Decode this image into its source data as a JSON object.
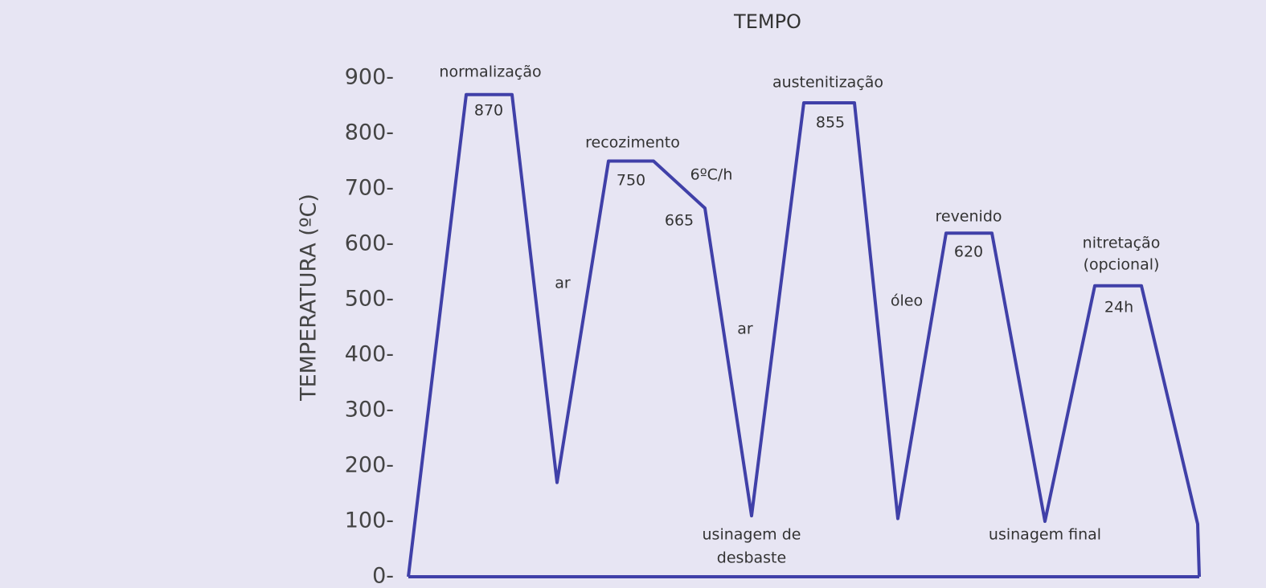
{
  "chart_data": {
    "type": "line",
    "title": "TEMPO",
    "y_label": "TEMPERATURA (ºC)",
    "x": [
      0,
      72,
      129,
      185,
      249,
      305,
      369,
      427,
      492,
      555,
      609,
      669,
      726,
      792,
      854,
      912,
      982,
      984
    ],
    "xlim": [
      0,
      984
    ],
    "series": [
      {
        "color": "#4040a8",
        "values": [
          0,
          870,
          870,
          170,
          750,
          750,
          665,
          110,
          855,
          855,
          105,
          620,
          620,
          100,
          525,
          525,
          95,
          0
        ]
      }
    ],
    "ylim": [
      0,
      900
    ],
    "yticks": [
      {
        "value": 0,
        "label": "0-"
      },
      {
        "value": 100,
        "label": "100-"
      },
      {
        "value": 200,
        "label": "200-"
      },
      {
        "value": 300,
        "label": "300-"
      },
      {
        "value": 400,
        "label": "400-"
      },
      {
        "value": 500,
        "label": "500-"
      },
      {
        "value": 600,
        "label": "600-"
      },
      {
        "value": 700,
        "label": "700-"
      },
      {
        "value": 800,
        "label": "800-"
      },
      {
        "value": 900,
        "label": "900-"
      }
    ],
    "annotations": [
      "normalização",
      "recozimento",
      "6ºC/h",
      "ar",
      "ar",
      "austenitização",
      "revenido",
      "óleo",
      "nitretação",
      "(opcional)",
      "24h",
      "usinagem de",
      "desbaste",
      "usinagem final"
    ],
    "grid": false
  }
}
